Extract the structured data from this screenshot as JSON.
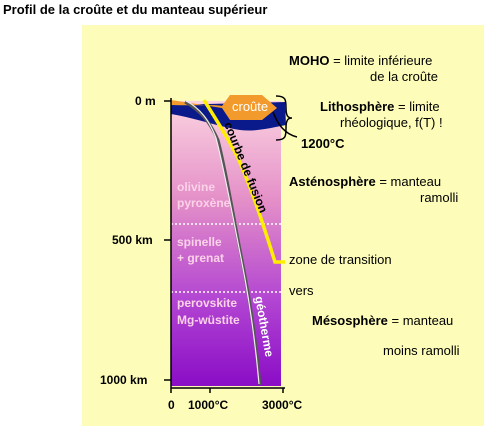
{
  "title": "Profil de la croûte et du manteau supérieur",
  "depth_labels": {
    "surface": "0 m",
    "mid": "500 km",
    "bottom": "1000 km"
  },
  "temperature_labels": {
    "t0": "0",
    "t1": "1000°C",
    "t2": "3000°C"
  },
  "zone_labels": {
    "olivine": "olivine",
    "pyroxene": "pyroxène",
    "spinelle": "spinelle",
    "grenat": "+ grenat",
    "perovskite": "perovskite",
    "wustite": "Mg-wüstite"
  },
  "curve_labels": {
    "croute": "croûte",
    "fusion": "courbe de fusion",
    "geotherme": "géotherme"
  },
  "annotations": {
    "moho_bold": "MOHO",
    "moho_rest1": " = limite inférieure",
    "moho_rest2": "de la croûte",
    "litho_bold": "Lithosphère",
    "litho_rest1": " = limite",
    "litho_rest2": "rhéologique, f(T) !",
    "iso1200": "1200°C",
    "asthen_bold": "Asténosphère",
    "asthen_rest1": " = manteau",
    "asthen_rest2": "ramolli",
    "transition": "zone de transition",
    "vers": "vers",
    "meso_bold": "Mésosphère",
    "meso_rest1": " = manteau",
    "meso_rest2": "moins ramolli"
  },
  "colors": {
    "background": "#fdfdb9",
    "gradient_top": "#f9cadb",
    "gradient_bottom": "#8f10c8",
    "crust": "#f39a2c",
    "lithosphere": "#0a1a8a",
    "fusion_curve": "#ffee00",
    "geotherm": "#6a6a6a"
  }
}
